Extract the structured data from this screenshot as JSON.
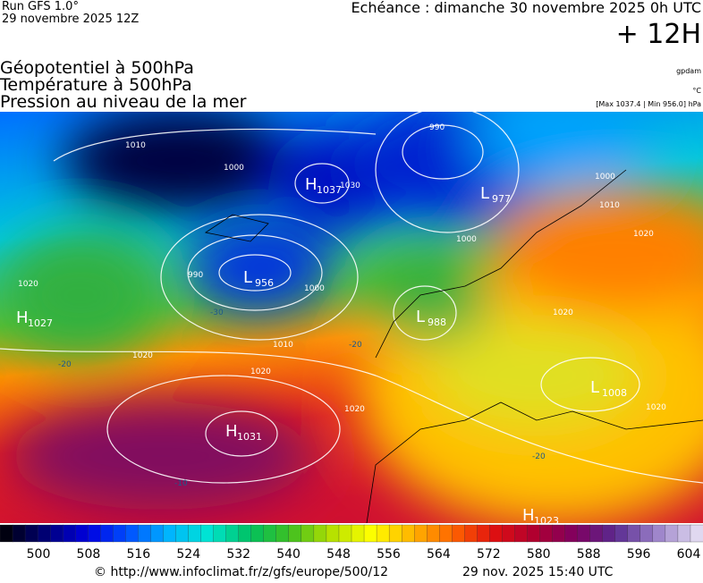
{
  "header": {
    "run": "Run GFS 1.0°",
    "date": "29 novembre 2025 12Z",
    "echeance": "Echéance : dimanche 30 novembre 2025 0h UTC",
    "lead": "+ 12H"
  },
  "titles": [
    "Géopotentiel à 500hPa",
    "Température à 500hPa",
    "Pression au niveau de la mer"
  ],
  "units": {
    "geopotential": "gpdam",
    "temperature": "°C",
    "pressure": "[Max 1037.4 | Min 956.0] hPa"
  },
  "centers": [
    {
      "letter": "H",
      "value": "1037"
    },
    {
      "letter": "L",
      "value": "977"
    },
    {
      "letter": "L",
      "value": "956"
    },
    {
      "letter": "L",
      "value": "988"
    },
    {
      "letter": "H",
      "value": "1031"
    },
    {
      "letter": "L",
      "value": "1008"
    },
    {
      "letter": "H",
      "value": "1023"
    },
    {
      "letter": "H",
      "value": "1027"
    }
  ],
  "contour_labels": [
    "1010",
    "1000",
    "990",
    "1020",
    "1030",
    "1000",
    "990",
    "1010",
    "1020",
    "1000",
    "1020",
    "1020",
    "1020",
    "1010",
    "1000",
    "1020",
    "-20",
    "-30",
    "-20",
    "-20",
    "1020",
    "-10"
  ],
  "colorbar": {
    "labels": [
      "500",
      "508",
      "516",
      "524",
      "532",
      "540",
      "548",
      "556",
      "564",
      "572",
      "580",
      "588",
      "596",
      "604"
    ],
    "colors": [
      "#000010",
      "#00007a",
      "#0000e0",
      "#0050ff",
      "#00b4ff",
      "#00e6d2",
      "#00c060",
      "#40c020",
      "#b4e000",
      "#ffff00",
      "#ffb400",
      "#ff6400",
      "#e01010",
      "#b00030",
      "#800060",
      "#5a2a90",
      "#9a80c8",
      "#e0d8f0"
    ]
  },
  "footer": {
    "url": "© http://www.infoclimat.fr/z/gfs/europe/500/12",
    "timestamp": "29 nov. 2025 15:40 UTC"
  }
}
